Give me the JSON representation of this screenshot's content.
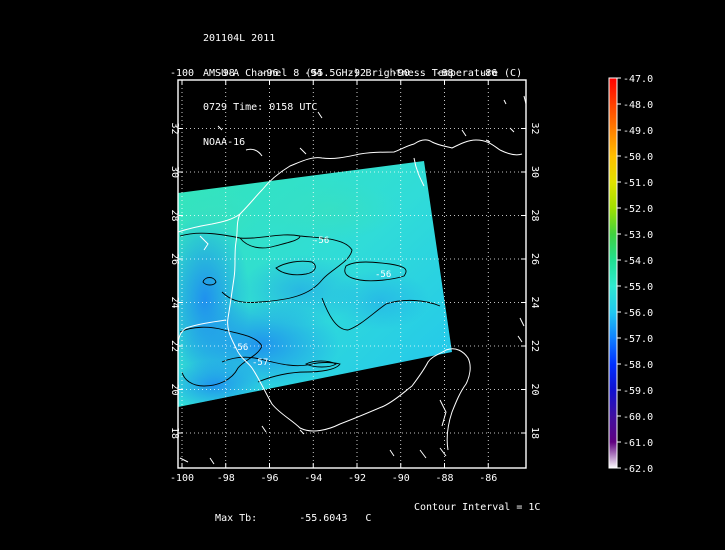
{
  "header": {
    "line1": "201104L 2011",
    "line2": "AMSU-A Channel 8 (55.5GHz) Brightness Temperature (C)",
    "line3": "0729 Time: 0158 UTC",
    "line4": "NOAA-16"
  },
  "map": {
    "lon_ticks": [
      "-100",
      "-98",
      "-96",
      "-94",
      "-92",
      "-90",
      "-88",
      "-86"
    ],
    "lat_ticks": [
      "18",
      "20",
      "22",
      "24",
      "26",
      "28",
      "30",
      "32"
    ],
    "contour_labels": [
      "-56",
      "-56",
      "-56",
      "-57"
    ],
    "colors": {
      "background": "#000000",
      "coastline": "#ffffff",
      "contour": "#000000"
    }
  },
  "colorbar": {
    "labels": [
      "-47.0",
      "-48.0",
      "-49.0",
      "-50.0",
      "-51.0",
      "-52.0",
      "-53.0",
      "-54.0",
      "-55.0",
      "-56.0",
      "-57.0",
      "-58.0",
      "-59.0",
      "-60.0",
      "-61.0",
      "-62.0"
    ],
    "colors_top_to_bottom": [
      "#ff0000",
      "#ff4000",
      "#ff8000",
      "#ffbf00",
      "#e0e000",
      "#a0e000",
      "#40d040",
      "#20e090",
      "#30e8d0",
      "#20c8f0",
      "#1080ff",
      "#0030ff",
      "#1010d0",
      "#4010a0",
      "#600080",
      "#ffffff"
    ]
  },
  "footer": {
    "max_label": "Max Tb:",
    "max_value": "-55.6043",
    "max_unit": "C",
    "contour_interval": "Contour Interval = 1C"
  }
}
